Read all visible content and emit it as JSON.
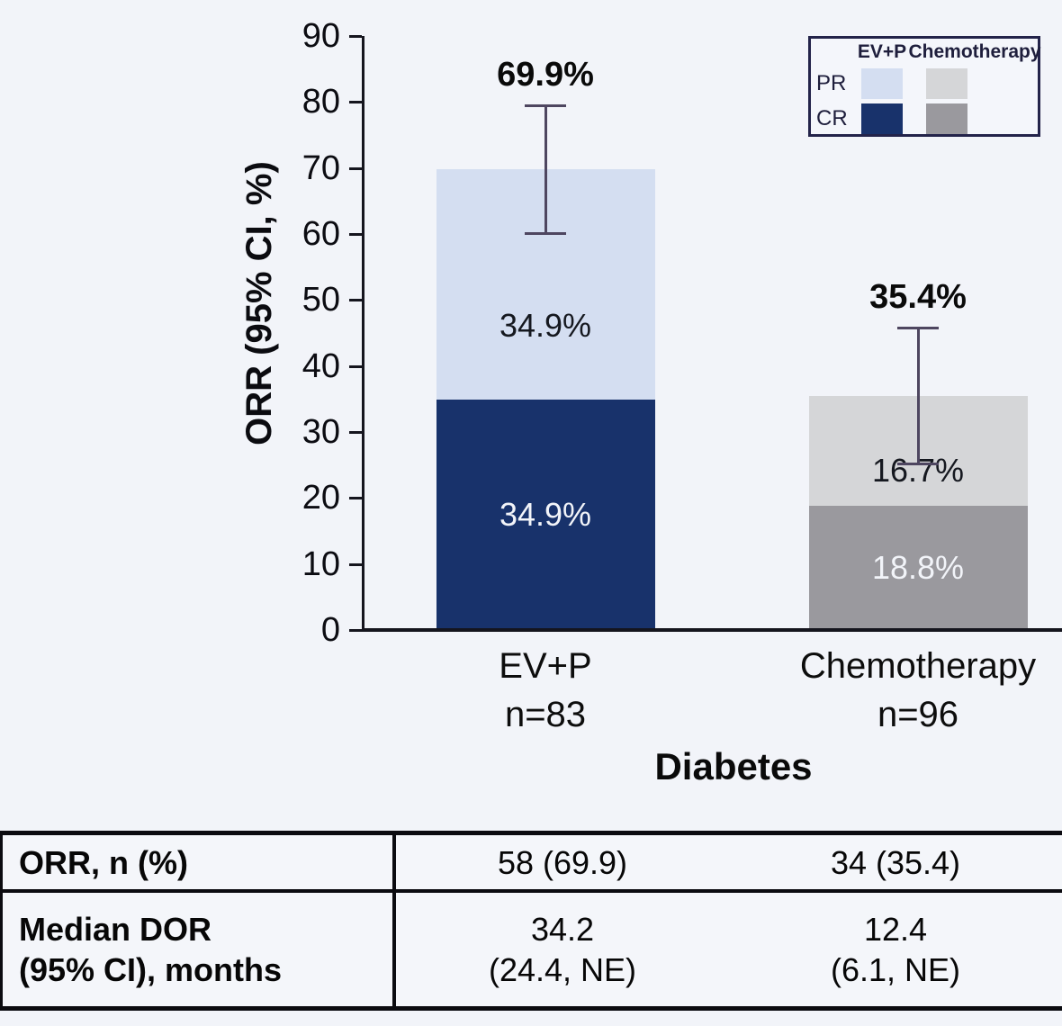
{
  "chart_data": {
    "type": "bar",
    "stacked": true,
    "ylabel": "ORR (95% CI, %)",
    "xlabel": "Diabetes",
    "ylim": [
      0,
      90
    ],
    "yticks": [
      0,
      10,
      20,
      30,
      40,
      50,
      60,
      70,
      80,
      90
    ],
    "grid": false,
    "legend_position": "top-right",
    "categories": [
      "EV+P",
      "Chemotherapy"
    ],
    "category_sublabels": [
      "n=83",
      "n=96"
    ],
    "series": [
      {
        "name": "CR",
        "values": [
          34.9,
          18.8
        ],
        "labels": [
          "34.9%",
          "18.8%"
        ],
        "colors": [
          "#18326b",
          "#9a999e"
        ],
        "label_text_colors": [
          "#f2f4f9",
          "#f2f4f9"
        ]
      },
      {
        "name": "PR",
        "values": [
          34.9,
          16.7
        ],
        "labels": [
          "34.9%",
          "16.7%"
        ],
        "colors": [
          "#d4def1",
          "#d5d6d8"
        ],
        "label_text_colors": [
          "#15181f",
          "#15181f"
        ]
      }
    ],
    "totals": [
      "69.9%",
      "35.4%"
    ],
    "error_bars_95ci": [
      [
        60.2,
        79.5
      ],
      [
        25.2,
        45.8
      ]
    ],
    "legend": {
      "columns": [
        "EV+P",
        "Chemotherapy"
      ],
      "rows": [
        "PR",
        "CR"
      ]
    }
  },
  "table": {
    "rows": [
      {
        "label_lines": [
          "ORR, n (%)"
        ],
        "values": [
          [
            "58 (69.9)"
          ],
          [
            "34 (35.4)"
          ]
        ]
      },
      {
        "label_lines": [
          "Median DOR",
          "(95% CI), months"
        ],
        "values": [
          [
            "34.2",
            "(24.4, NE)"
          ],
          [
            "12.4",
            "(6.1, NE)"
          ]
        ]
      }
    ]
  },
  "colors": {
    "background": "#f2f4f9",
    "axis": "#15151e",
    "error_bar": "#4e4660",
    "table_border": "#0b0b10",
    "legend_border": "#23234a"
  }
}
